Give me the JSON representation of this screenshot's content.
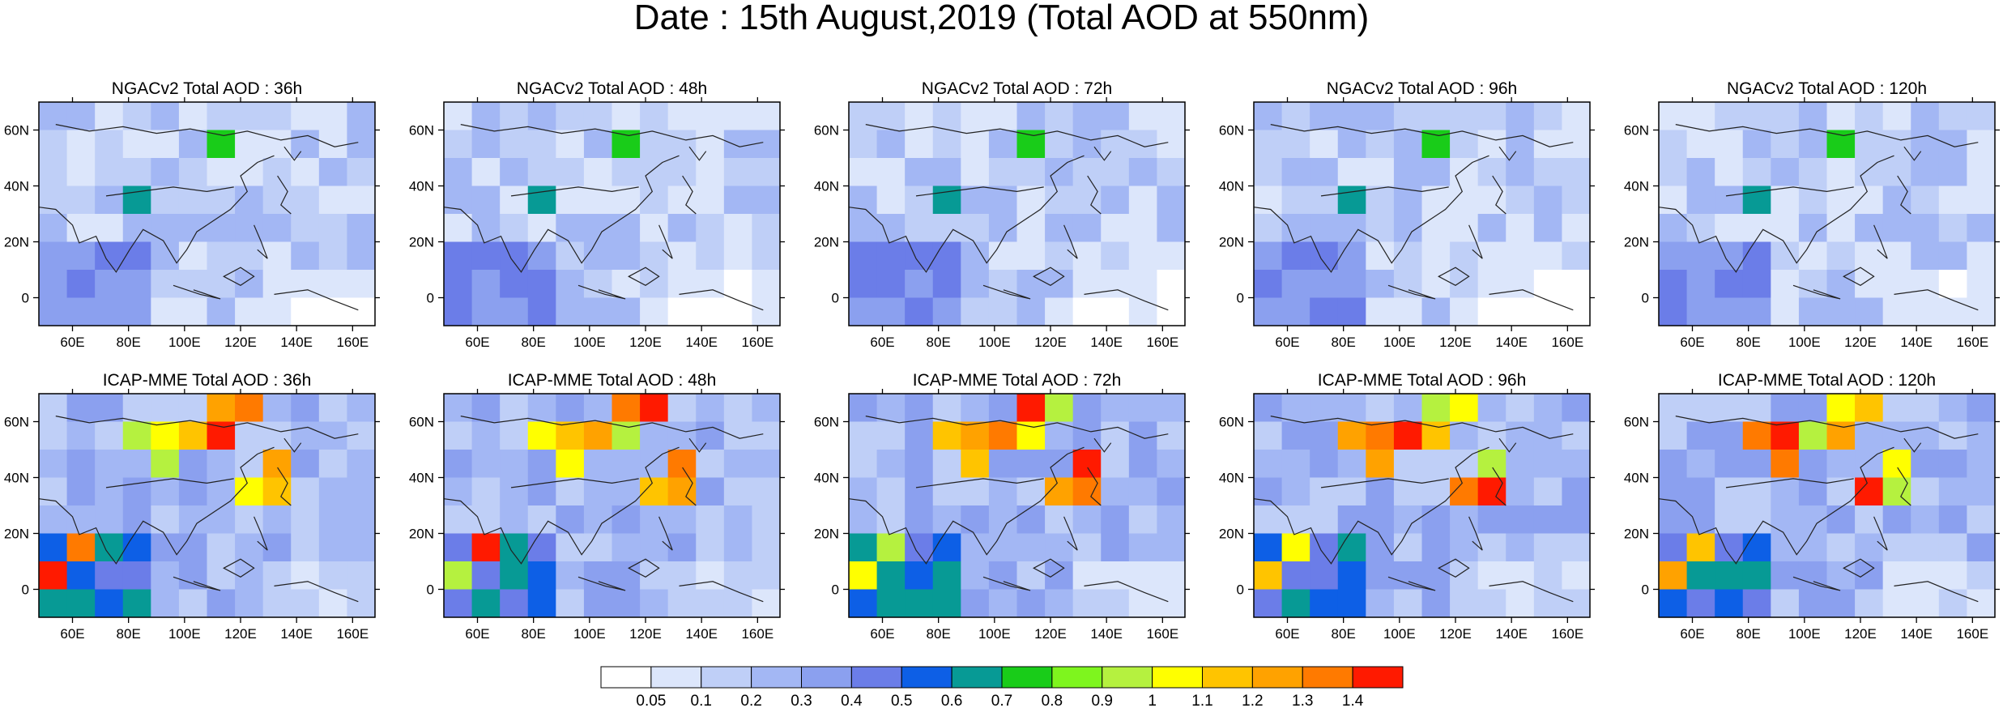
{
  "title": "Date : 15th August,2019 (Total AOD at 550nm)",
  "rows": [
    {
      "model": "NGACv2",
      "panels": [
        {
          "title": "NGACv2 Total AOD : 36h"
        },
        {
          "title": "NGACv2 Total AOD : 48h"
        },
        {
          "title": "NGACv2 Total AOD : 72h"
        },
        {
          "title": "NGACv2 Total AOD : 96h"
        },
        {
          "title": "NGACv2 Total AOD : 120h"
        }
      ]
    },
    {
      "model": "ICAP-MME",
      "panels": [
        {
          "title": "ICAP-MME Total AOD : 36h"
        },
        {
          "title": "ICAP-MME Total AOD : 48h"
        },
        {
          "title": "ICAP-MME Total AOD : 72h"
        },
        {
          "title": "ICAP-MME Total AOD : 96h"
        },
        {
          "title": "ICAP-MME Total AOD : 120h"
        }
      ]
    }
  ],
  "map": {
    "lon_range": [
      48,
      168
    ],
    "lat_range": [
      -10,
      70
    ],
    "lon_ticks": [
      "60E",
      "80E",
      "100E",
      "120E",
      "140E",
      "160E"
    ],
    "lon_tick_values": [
      60,
      80,
      100,
      120,
      140,
      160
    ],
    "lat_ticks": [
      "60N",
      "40N",
      "20N",
      "0"
    ],
    "lat_tick_values": [
      60,
      40,
      20,
      0
    ]
  },
  "colorbar": {
    "labels": [
      "0.05",
      "0.1",
      "0.2",
      "0.3",
      "0.4",
      "0.5",
      "0.6",
      "0.7",
      "0.8",
      "0.9",
      "1",
      "1.1",
      "1.2",
      "1.3",
      "1.4"
    ],
    "colors": [
      "#ffffff",
      "#dce6fb",
      "#bfcff7",
      "#a3b7f4",
      "#8ba0ef",
      "#6b7de8",
      "#0d5fe6",
      "#079a95",
      "#19cc19",
      "#7ef51e",
      "#b5f13f",
      "#ffff00",
      "#ffc400",
      "#ffa200",
      "#ff7a00",
      "#ff1a00"
    ]
  }
}
